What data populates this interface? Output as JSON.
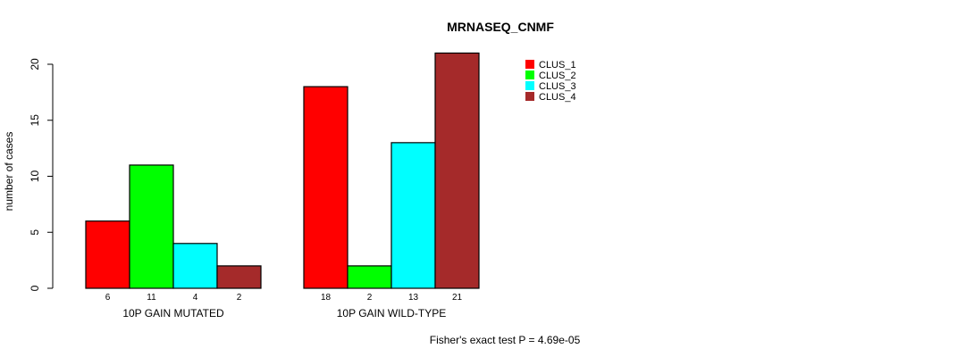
{
  "chart_data": {
    "type": "bar",
    "title": "MRNASEQ_CNMF",
    "xlabel": "",
    "ylabel": "number of cases",
    "ylim": [
      0,
      20
    ],
    "yticks": [
      "0",
      "5",
      "10",
      "15",
      "20"
    ],
    "groups": [
      "10P GAIN MUTATED",
      "10P GAIN WILD-TYPE"
    ],
    "series": [
      {
        "name": "CLUS_1",
        "color": "#ff0000",
        "values": [
          6,
          18
        ]
      },
      {
        "name": "CLUS_2",
        "color": "#00ff00",
        "values": [
          11,
          2
        ]
      },
      {
        "name": "CLUS_3",
        "color": "#00ffff",
        "values": [
          4,
          13
        ]
      },
      {
        "name": "CLUS_4",
        "color": "#a52a2a",
        "values": [
          2,
          21
        ]
      }
    ],
    "legend_position": "top-right",
    "annotation": "Fisher's exact test P = 4.69e-05"
  }
}
